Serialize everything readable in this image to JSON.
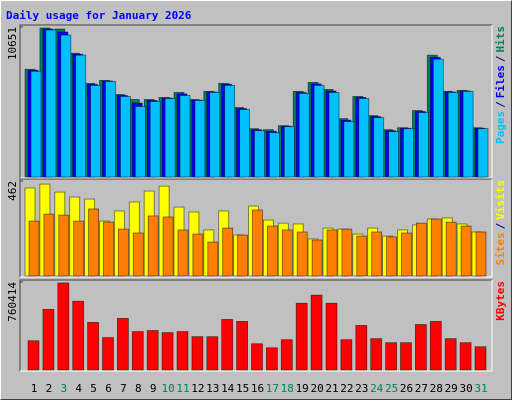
{
  "chart_data": {
    "type": "bar",
    "title": "Daily usage for January 2026",
    "categories": [
      "1",
      "2",
      "3",
      "4",
      "5",
      "6",
      "7",
      "8",
      "9",
      "10",
      "11",
      "12",
      "13",
      "14",
      "15",
      "16",
      "17",
      "18",
      "19",
      "20",
      "21",
      "22",
      "23",
      "24",
      "25",
      "26",
      "27",
      "28",
      "29",
      "30",
      "31"
    ],
    "category_colors": [
      "#000000",
      "#000000",
      "#00805c",
      "#000000",
      "#000000",
      "#000000",
      "#000000",
      "#000000",
      "#000000",
      "#00805c",
      "#00805c",
      "#000000",
      "#000000",
      "#000000",
      "#000000",
      "#000000",
      "#00805c",
      "#00805c",
      "#000000",
      "#000000",
      "#000000",
      "#000000",
      "#000000",
      "#00805c",
      "#00805c",
      "#000000",
      "#000000",
      "#000000",
      "#000000",
      "#000000",
      "#00805c"
    ],
    "legend_separator": "/",
    "panels": [
      {
        "ylim": [
          0,
          10651
        ],
        "yticks": [
          10651
        ],
        "series": [
          {
            "name": "Hits",
            "color": "#00805c",
            "values": [
              7650,
              10580,
              10510,
              8790,
              6650,
              6860,
              5860,
              5505,
              5505,
              5650,
              6005,
              5505,
              6080,
              6650,
              4935,
              3430,
              3360,
              3645,
              6080,
              6720,
              6220,
              4145,
              5720,
              4360,
              3360,
              3500,
              4720,
              8650,
              6080,
              6150,
              3500
            ]
          },
          {
            "name": "Files",
            "color": "#0000ff",
            "values": [
              7580,
              10510,
              10300,
              8720,
              6580,
              6820,
              5790,
              5250,
              5430,
              5610,
              5900,
              5470,
              6040,
              6580,
              4860,
              3360,
              3250,
              3610,
              6000,
              6610,
              6110,
              4040,
              5650,
              4290,
              3290,
              3460,
              4650,
              8500,
              6040,
              6110,
              3460
            ]
          },
          {
            "name": "Pages",
            "color": "#00c0ff",
            "values": [
              7505,
              10440,
              10080,
              8650,
              6505,
              6790,
              5720,
              5005,
              5360,
              5575,
              5790,
              5435,
              6005,
              6505,
              4790,
              3290,
              3145,
              3575,
              5935,
              6505,
              6005,
              3930,
              5575,
              4220,
              3220,
              3430,
              4575,
              8365,
              6005,
              6080,
              3430
            ]
          }
        ]
      },
      {
        "ylim": [
          0,
          462
        ],
        "yticks": [
          462
        ],
        "series": [
          {
            "name": "Visits",
            "color": "#ffff00",
            "values": [
              428,
              447,
              408,
              384,
              374,
              267,
              316,
              360,
              413,
              437,
              335,
              311,
              224,
              316,
              199,
              340,
              272,
              257,
              253,
              180,
              233,
              228,
              204,
              233,
              194,
              224,
              248,
              277,
              282,
              253,
              214
            ]
          },
          {
            "name": "Sites",
            "color": "#ff8000",
            "values": [
              267,
              301,
              296,
              267,
              326,
              262,
              228,
              209,
              292,
              287,
              224,
              204,
              165,
              233,
              199,
              321,
              243,
              224,
              214,
              175,
              224,
              228,
              194,
              214,
              190,
              209,
              257,
              277,
              262,
              243,
              214
            ]
          }
        ]
      },
      {
        "ylim": [
          0,
          760414
        ],
        "yticks": [
          760414
        ],
        "series": [
          {
            "name": "KBytes",
            "color": "#ff0000",
            "values": [
              253000,
              524000,
              752000,
              594000,
              411000,
              280000,
              446000,
              332000,
              341000,
              323000,
              332000,
              288000,
              288000,
              437000,
              420000,
              227000,
              192000,
              262000,
              577000,
              647000,
              577000,
              262000,
              385000,
              271000,
              236000,
              236000,
              393000,
              420000,
              271000,
              236000,
              201000
            ]
          }
        ]
      }
    ]
  }
}
